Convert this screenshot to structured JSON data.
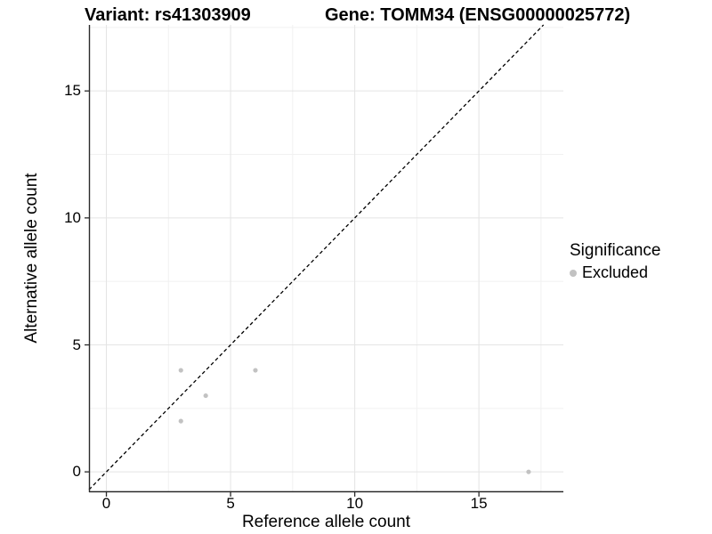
{
  "titles": {
    "variant": "Variant: rs41303909",
    "gene": "Gene: TOMM34 (ENSG00000025772)"
  },
  "chart_data": {
    "type": "scatter",
    "xlabel": "Reference allele count",
    "ylabel": "Alternative allele count",
    "x_ticks": [
      0,
      5,
      10,
      15
    ],
    "y_ticks": [
      0,
      5,
      10,
      15
    ],
    "x_minor_ticks": [
      2.5,
      7.5,
      12.5,
      17.5
    ],
    "y_minor_ticks": [
      2.5,
      7.5,
      12.5,
      17.5
    ],
    "xlim": [
      -0.7,
      18.4
    ],
    "ylim": [
      -0.8,
      17.6
    ],
    "grid": "on",
    "legend_position": "right",
    "series": [
      {
        "name": "Excluded",
        "color": "#c2c2c2",
        "points": [
          [
            3,
            2
          ],
          [
            3,
            4
          ],
          [
            4,
            3
          ],
          [
            6,
            4
          ],
          [
            17,
            0
          ]
        ]
      }
    ],
    "identity_line": {
      "style": "dashed",
      "slope": 1,
      "intercept": 0,
      "color": "#000000"
    },
    "legend": {
      "title": "Significance",
      "items": [
        {
          "label": "Excluded",
          "color": "#c2c2c2"
        }
      ]
    }
  },
  "colors": {
    "grid_major": "#e4e4e4",
    "grid_minor": "#f1f1f1",
    "axis": "#2b2b2b",
    "text": "#000000",
    "background": "#ffffff"
  }
}
